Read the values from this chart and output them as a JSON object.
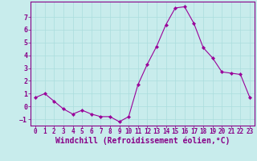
{
  "x": [
    0,
    1,
    2,
    3,
    4,
    5,
    6,
    7,
    8,
    9,
    10,
    11,
    12,
    13,
    14,
    15,
    16,
    17,
    18,
    19,
    20,
    21,
    22,
    23
  ],
  "y": [
    0.7,
    1.0,
    0.4,
    -0.2,
    -0.6,
    -0.3,
    -0.6,
    -0.8,
    -0.8,
    -1.2,
    -0.8,
    1.7,
    3.3,
    4.7,
    6.4,
    7.7,
    7.8,
    6.5,
    4.6,
    3.8,
    2.7,
    2.6,
    2.5,
    0.7
  ],
  "line_color": "#990099",
  "marker": "D",
  "marker_size": 2.2,
  "background_color": "#c8ecec",
  "grid_color": "#aadddd",
  "axis_bg_color": "#c8ecec",
  "xlabel": "Windchill (Refroidissement éolien,°C)",
  "ylabel": "",
  "xlim": [
    -0.5,
    23.5
  ],
  "ylim": [
    -1.5,
    8.2
  ],
  "yticks": [
    -1,
    0,
    1,
    2,
    3,
    4,
    5,
    6,
    7
  ],
  "xticks": [
    0,
    1,
    2,
    3,
    4,
    5,
    6,
    7,
    8,
    9,
    10,
    11,
    12,
    13,
    14,
    15,
    16,
    17,
    18,
    19,
    20,
    21,
    22,
    23
  ],
  "tick_label_fontsize": 5.5,
  "xlabel_fontsize": 7.0,
  "line_color_spine": "#880088",
  "tick_color": "#880088"
}
